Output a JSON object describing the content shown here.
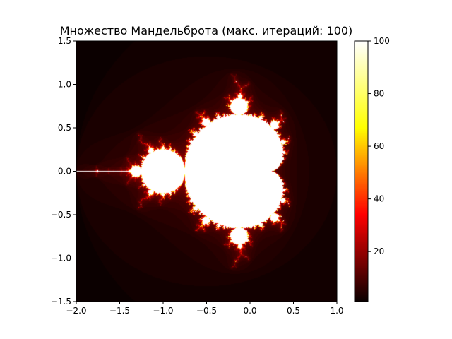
{
  "chart_data": {
    "type": "heatmap",
    "title": "Множество Мандельброта (макс. итераций: 100)",
    "xlabel": "",
    "ylabel": "",
    "xlim": [
      -2.0,
      1.0
    ],
    "ylim": [
      -1.5,
      1.5
    ],
    "x_ticks": [
      "−2.0",
      "−1.5",
      "−1.0",
      "−0.5",
      "0.0",
      "0.5",
      "1.0"
    ],
    "y_ticks": [
      "−1.5",
      "−1.0",
      "−0.5",
      "0.0",
      "0.5",
      "1.0",
      "1.5"
    ],
    "x_tick_values": [
      -2.0,
      -1.5,
      -1.0,
      -0.5,
      0.0,
      0.5,
      1.0
    ],
    "y_tick_values": [
      -1.5,
      -1.0,
      -0.5,
      0.0,
      0.5,
      1.0,
      1.5
    ],
    "colormap": "hot",
    "colormap_stops": [
      "#0b0000",
      "#ff0000",
      "#ffff00",
      "#ffffff"
    ],
    "max_iterations": 100,
    "colorbar": {
      "range": [
        1,
        100
      ],
      "ticks": [
        "20",
        "40",
        "60",
        "80",
        "100"
      ],
      "tick_values": [
        20,
        40,
        60,
        80,
        100
      ]
    },
    "grid": false,
    "legend": "none"
  }
}
